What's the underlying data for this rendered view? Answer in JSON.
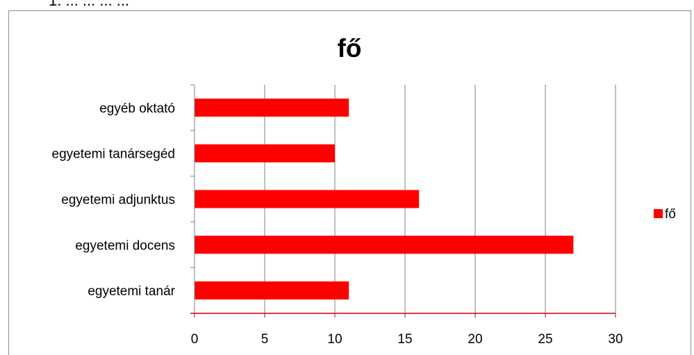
{
  "page": {
    "top_cut_text": "1.     ...   ...     ...  ..."
  },
  "chart_data": {
    "type": "bar",
    "orientation": "horizontal",
    "title": "fő",
    "categories": [
      "egyetemi tanár",
      "egyetemi docens",
      "egyetemi adjunktus",
      "egyetemi tanársegéd",
      "egyéb oktató"
    ],
    "series": [
      {
        "name": "fő",
        "values": [
          11,
          27,
          16,
          10,
          11
        ],
        "color": "#ff0000"
      }
    ],
    "xlim": [
      0,
      30
    ],
    "xticks": [
      0,
      5,
      10,
      15,
      20,
      25,
      30
    ],
    "grid": true,
    "gridlines_color": "#808080",
    "axis_color": "#cc0000",
    "legend_position": "right"
  }
}
